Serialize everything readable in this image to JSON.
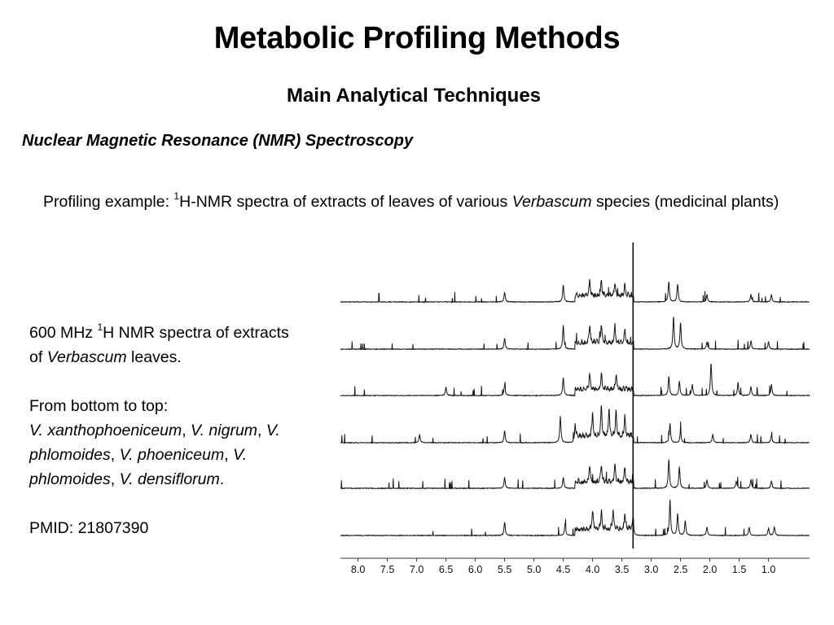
{
  "slide": {
    "title": "Metabolic Profiling Methods",
    "subtitle": "Main Analytical Techniques",
    "section_heading": "Nuclear Magnetic Resonance (NMR) Spectroscopy",
    "intro": {
      "prefix": "Profiling example: ",
      "sup": "1",
      "middle": "H-NMR spectra of extracts of leaves of various ",
      "italic": "Verbascum",
      "suffix": " species (medicinal plants)"
    },
    "caption": {
      "line1_prefix": "600 MHz ",
      "line1_sup": "1",
      "line1_middle": "H NMR spectra of extracts of ",
      "line1_italic": "Verbascum",
      "line1_suffix": " leaves.",
      "order_label": "From bottom to top:",
      "species": [
        {
          "name": "V. xanthophoeniceum",
          "sep": ", "
        },
        {
          "name": "V. nigrum",
          "sep": ", "
        },
        {
          "name": "V. phlomoides",
          "sep": ", "
        },
        {
          "name": "V. phoeniceum",
          "sep": ", "
        },
        {
          "name": "V. phlomoides",
          "sep": ", "
        },
        {
          "name": "V. densiflorum",
          "sep": "."
        }
      ],
      "pmid": "PMID: 21807390"
    }
  },
  "chart_data": {
    "type": "line",
    "title": "",
    "xlabel": "",
    "ylabel": "",
    "x_axis_reversed": true,
    "xlim": [
      8.3,
      0.3
    ],
    "x_ticks": [
      "8.0",
      "7.5",
      "7.0",
      "6.5",
      "6.0",
      "5.5",
      "5.0",
      "4.5",
      "4.0",
      "3.5",
      "3.0",
      "2.5",
      "2.0",
      "1.5",
      "1.0"
    ],
    "vertical_marker_ppm": 3.31,
    "stack_order": "bottom to top",
    "series": [
      {
        "peaks": [
          {
            "ppm": 5.5,
            "h": 0.55
          },
          {
            "ppm": 4.47,
            "h": 0.5
          },
          {
            "ppm": 4.0,
            "h": 0.8
          },
          {
            "ppm": 3.85,
            "h": 0.75
          },
          {
            "ppm": 3.65,
            "h": 0.85
          },
          {
            "ppm": 3.45,
            "h": 0.7
          },
          {
            "ppm": 3.31,
            "h": 0.6
          },
          {
            "ppm": 2.68,
            "h": 1.5
          },
          {
            "ppm": 2.55,
            "h": 0.9
          },
          {
            "ppm": 2.42,
            "h": 0.6
          },
          {
            "ppm": 2.05,
            "h": 0.35
          },
          {
            "ppm": 1.33,
            "h": 0.35
          },
          {
            "ppm": 1.0,
            "h": 0.3
          },
          {
            "ppm": 0.9,
            "h": 0.35
          }
        ]
      },
      {
        "peaks": [
          {
            "ppm": 5.5,
            "h": 0.45
          },
          {
            "ppm": 4.5,
            "h": 0.45
          },
          {
            "ppm": 4.05,
            "h": 0.7
          },
          {
            "ppm": 3.85,
            "h": 0.75
          },
          {
            "ppm": 3.62,
            "h": 0.7
          },
          {
            "ppm": 3.45,
            "h": 0.6
          },
          {
            "ppm": 2.7,
            "h": 1.2
          },
          {
            "ppm": 2.52,
            "h": 0.9
          },
          {
            "ppm": 2.05,
            "h": 0.35
          },
          {
            "ppm": 1.55,
            "h": 0.3
          },
          {
            "ppm": 1.3,
            "h": 0.35
          },
          {
            "ppm": 0.95,
            "h": 0.3
          }
        ]
      },
      {
        "peaks": [
          {
            "ppm": 6.95,
            "h": 0.35
          },
          {
            "ppm": 5.5,
            "h": 0.5
          },
          {
            "ppm": 4.55,
            "h": 1.1
          },
          {
            "ppm": 4.3,
            "h": 0.6
          },
          {
            "ppm": 4.0,
            "h": 0.95
          },
          {
            "ppm": 3.85,
            "h": 1.2
          },
          {
            "ppm": 3.72,
            "h": 1.15
          },
          {
            "ppm": 3.6,
            "h": 1.0
          },
          {
            "ppm": 3.45,
            "h": 0.85
          },
          {
            "ppm": 2.68,
            "h": 0.8
          },
          {
            "ppm": 2.5,
            "h": 0.5
          },
          {
            "ppm": 1.95,
            "h": 0.35
          },
          {
            "ppm": 1.3,
            "h": 0.35
          },
          {
            "ppm": 0.95,
            "h": 0.3
          }
        ]
      },
      {
        "peaks": [
          {
            "ppm": 6.5,
            "h": 0.35
          },
          {
            "ppm": 5.5,
            "h": 0.45
          },
          {
            "ppm": 4.5,
            "h": 0.75
          },
          {
            "ppm": 4.05,
            "h": 0.6
          },
          {
            "ppm": 3.85,
            "h": 0.65
          },
          {
            "ppm": 3.6,
            "h": 0.6
          },
          {
            "ppm": 2.7,
            "h": 0.8
          },
          {
            "ppm": 2.52,
            "h": 0.6
          },
          {
            "ppm": 2.3,
            "h": 0.45
          },
          {
            "ppm": 1.98,
            "h": 1.35
          },
          {
            "ppm": 1.52,
            "h": 0.55
          },
          {
            "ppm": 1.3,
            "h": 0.35
          },
          {
            "ppm": 0.95,
            "h": 0.45
          }
        ]
      },
      {
        "peaks": [
          {
            "ppm": 5.5,
            "h": 0.45
          },
          {
            "ppm": 4.5,
            "h": 1.0
          },
          {
            "ppm": 4.05,
            "h": 0.75
          },
          {
            "ppm": 3.85,
            "h": 0.8
          },
          {
            "ppm": 3.62,
            "h": 0.7
          },
          {
            "ppm": 3.45,
            "h": 0.6
          },
          {
            "ppm": 2.62,
            "h": 1.35
          },
          {
            "ppm": 2.5,
            "h": 1.1
          },
          {
            "ppm": 2.05,
            "h": 0.3
          },
          {
            "ppm": 1.3,
            "h": 0.35
          },
          {
            "ppm": 1.0,
            "h": 0.3
          }
        ]
      },
      {
        "peaks": [
          {
            "ppm": 5.5,
            "h": 0.4
          },
          {
            "ppm": 4.5,
            "h": 0.7
          },
          {
            "ppm": 4.05,
            "h": 0.65
          },
          {
            "ppm": 3.85,
            "h": 0.6
          },
          {
            "ppm": 3.62,
            "h": 0.55
          },
          {
            "ppm": 3.45,
            "h": 0.45
          },
          {
            "ppm": 2.7,
            "h": 0.85
          },
          {
            "ppm": 2.55,
            "h": 0.75
          },
          {
            "ppm": 2.05,
            "h": 0.3
          },
          {
            "ppm": 1.3,
            "h": 0.3
          },
          {
            "ppm": 0.95,
            "h": 0.3
          }
        ]
      }
    ]
  }
}
